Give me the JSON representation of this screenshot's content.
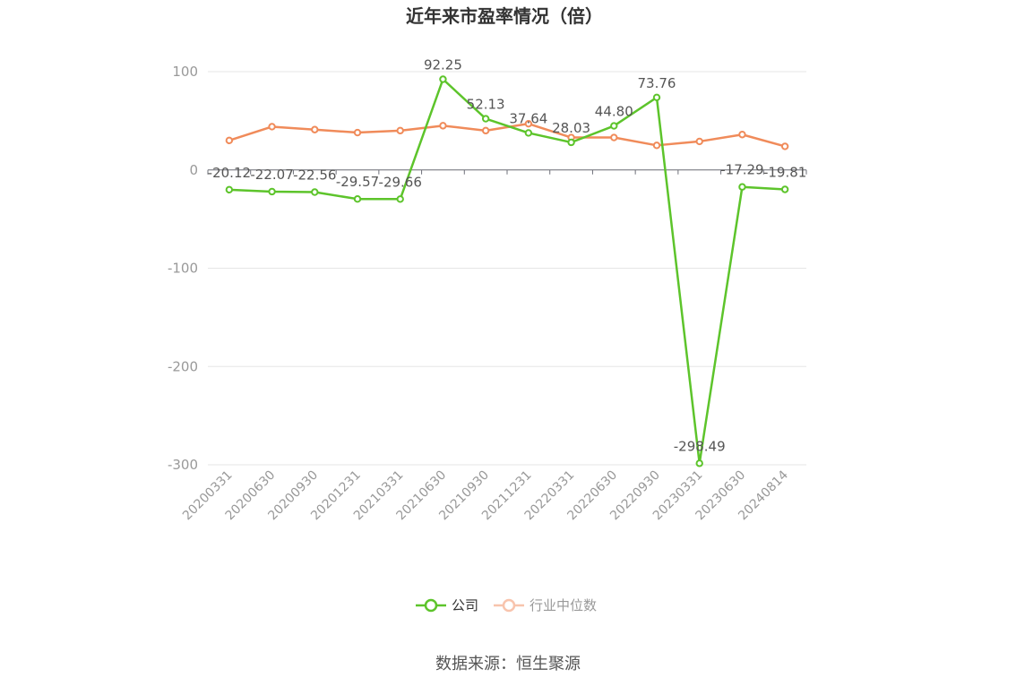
{
  "source_note": "数据来源：恒生聚源",
  "chart_data": {
    "type": "line",
    "title": "近年来市盈率情况（倍）",
    "xlabel": "",
    "ylabel": "",
    "ylim": [
      -300,
      100
    ],
    "yticks": [
      100,
      0,
      -100,
      -200,
      -300
    ],
    "grid": true,
    "legend_position": "bottom",
    "categories": [
      "20200331",
      "20200630",
      "20200930",
      "20201231",
      "20210331",
      "20210630",
      "20210930",
      "20211231",
      "20220331",
      "20220630",
      "20220930",
      "20230331",
      "20230630",
      "20240814"
    ],
    "series": [
      {
        "name": "公司",
        "color": "#5dc42b",
        "labeled": true,
        "values": [
          -20.12,
          -22.07,
          -22.56,
          -29.57,
          -29.66,
          92.25,
          52.13,
          37.64,
          28.03,
          44.8,
          73.76,
          -298.49,
          -17.29,
          -19.81
        ],
        "labels": [
          "-20.12",
          "-22.07",
          "-22.56",
          "-29.57",
          "-29.66",
          "92.25",
          "52.13",
          "37.64",
          "28.03",
          "44.80",
          "73.76",
          "-298.49",
          "-17.29",
          "-19.81"
        ]
      },
      {
        "name": "行业中位数",
        "color": "#f08b5a",
        "labeled": false,
        "values": [
          30,
          44,
          41,
          38,
          40,
          45,
          40,
          47,
          33,
          33,
          25,
          29,
          36,
          24
        ]
      }
    ]
  }
}
